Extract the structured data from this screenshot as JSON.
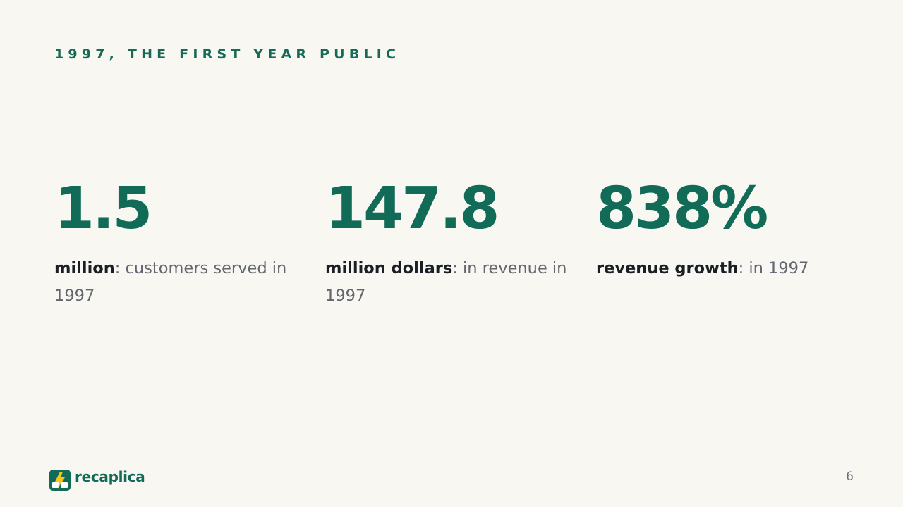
{
  "slide": {
    "eyebrow": "1997, THE FIRST YEAR PUBLIC",
    "page_number": "6"
  },
  "stats": [
    {
      "value": "1.5",
      "lead": "million",
      "rest": ": customers served in 1997"
    },
    {
      "value": "147.8",
      "lead": "million dollars",
      "rest": ": in revenue in 1997"
    },
    {
      "value": "838%",
      "lead": "revenue growth",
      "rest": ": in 1997"
    }
  ],
  "brand": {
    "name": "recaplica",
    "icon": "book-lightning-icon",
    "color": "#116b57",
    "accent": "#f5c518"
  },
  "colors": {
    "background": "#f8f7f2",
    "primary": "#116b57",
    "text_dark": "#1b1e24",
    "text_muted": "#63666e"
  }
}
